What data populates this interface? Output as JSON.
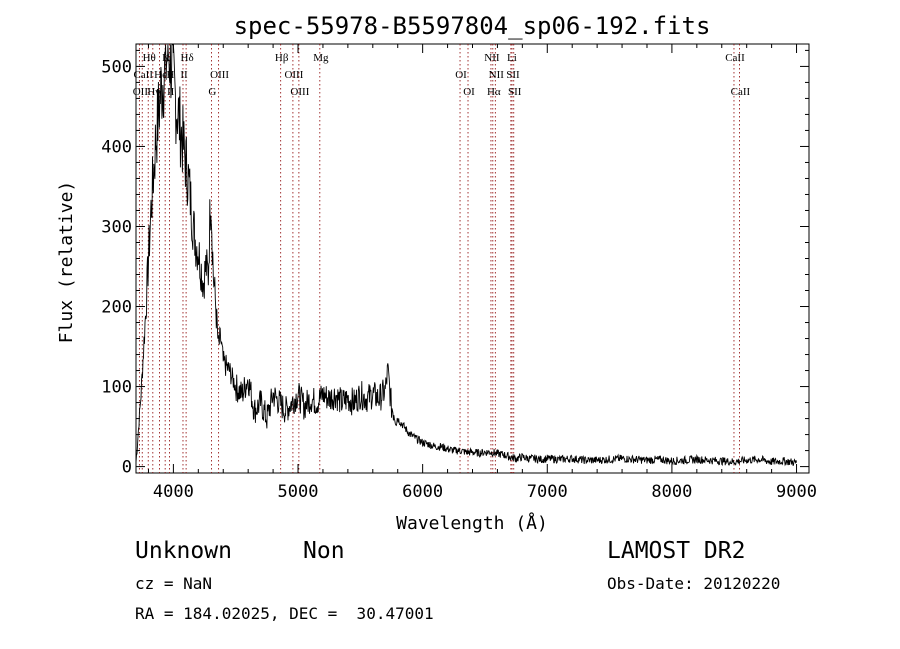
{
  "chart_data": {
    "type": "line",
    "title": "spec-55978-B5597804_sp06-192.fits",
    "xlabel": "Wavelength (Å)",
    "ylabel": "Flux (relative)",
    "xlim": [
      3700,
      9100
    ],
    "ylim": [
      -8,
      528
    ],
    "x_ticks": [
      4000,
      5000,
      6000,
      7000,
      8000,
      9000
    ],
    "y_ticks": [
      0,
      100,
      200,
      300,
      400,
      500
    ],
    "x_tick_labels": [
      "4000",
      "5000",
      "6000",
      "7000",
      "8000",
      "9000"
    ],
    "y_tick_labels": [
      "0",
      "100",
      "200",
      "300",
      "400",
      "500"
    ],
    "grid": false,
    "line_color": "#000000",
    "marker_color": "#8b0000",
    "series": [
      {
        "x": [
          3700,
          3740,
          3780,
          3820,
          3860,
          3900,
          3930,
          3960,
          3980,
          4000,
          4020,
          4040,
          4060,
          4080,
          4100,
          4120,
          4140,
          4160,
          4180,
          4200,
          4220,
          4240,
          4260,
          4280,
          4300,
          4320,
          4340,
          4360,
          4380,
          4400,
          4450,
          4500,
          4550,
          4600,
          4650,
          4700,
          4750,
          4800,
          4850,
          4900,
          4950,
          5000,
          5050,
          5100,
          5150,
          5200,
          5250,
          5300,
          5350,
          5400,
          5450,
          5500,
          5550,
          5600,
          5650,
          5700,
          5720,
          5750,
          5800,
          5850,
          5900,
          5950,
          6000,
          6050,
          6100,
          6150,
          6200,
          6250,
          6300,
          6350,
          6400,
          6450,
          6500,
          6550,
          6600,
          6650,
          6700,
          6750,
          6800,
          6850,
          6900,
          6950,
          7000,
          7100,
          7200,
          7300,
          7400,
          7500,
          7600,
          7700,
          7800,
          7900,
          8000,
          8100,
          8200,
          8300,
          8400,
          8500,
          8600,
          8700,
          8800,
          8900,
          9000
        ],
        "y": [
          5,
          90,
          200,
          320,
          410,
          470,
          495,
          520,
          505,
          480,
          455,
          440,
          420,
          400,
          380,
          360,
          330,
          300,
          280,
          270,
          250,
          230,
          250,
          240,
          350,
          240,
          200,
          150,
          160,
          130,
          120,
          100,
          90,
          110,
          70,
          80,
          60,
          90,
          80,
          70,
          80,
          90,
          75,
          85,
          80,
          90,
          85,
          90,
          80,
          85,
          80,
          90,
          85,
          90,
          85,
          95,
          120,
          75,
          60,
          50,
          40,
          35,
          30,
          28,
          25,
          25,
          22,
          20,
          20,
          18,
          18,
          17,
          18,
          18,
          16,
          15,
          12,
          10,
          12,
          10,
          10,
          9,
          10,
          9,
          10,
          8,
          8,
          9,
          10,
          9,
          8,
          9,
          7,
          8,
          9,
          8,
          7,
          6,
          8,
          9,
          6,
          7,
          5
        ]
      }
    ],
    "marker_labels": [
      {
        "name": "Hθ",
        "row": 1,
        "x": 3798
      },
      {
        "name": "K",
        "row": 1,
        "x": 3934
      },
      {
        "name": "Hδ",
        "row": 1,
        "x": 4102
      },
      {
        "name": "Hβ",
        "row": 1,
        "x": 4861
      },
      {
        "name": "Mg",
        "row": 1,
        "x": 5175
      },
      {
        "name": "NII",
        "row": 1,
        "x": 6548
      },
      {
        "name": "Li",
        "row": 1,
        "x": 6708
      },
      {
        "name": "CaII",
        "row": 1,
        "x": 8498
      },
      {
        "name": "CaII",
        "row": 2,
        "x": 3750
      },
      {
        "name": "He",
        "row": 2,
        "x": 3889
      },
      {
        "name": "H",
        "row": 2,
        "x": 3969
      },
      {
        "name": "II",
        "row": 2,
        "x": 4077
      },
      {
        "name": "OIII",
        "row": 2,
        "x": 4363
      },
      {
        "name": "OIII",
        "row": 2,
        "x": 4959
      },
      {
        "name": "OI",
        "row": 2,
        "x": 6300
      },
      {
        "name": "NII",
        "row": 2,
        "x": 6583
      },
      {
        "name": "SII",
        "row": 2,
        "x": 6717
      },
      {
        "name": "OII",
        "row": 3,
        "x": 3727
      },
      {
        "name": "Hγ",
        "row": 3,
        "x": 3835
      },
      {
        "name": "II",
        "row": 3,
        "x": 3970
      },
      {
        "name": "G",
        "row": 3,
        "x": 4305
      },
      {
        "name": "OIII",
        "row": 3,
        "x": 5007
      },
      {
        "name": "OI",
        "row": 3,
        "x": 6364
      },
      {
        "name": "Hα",
        "row": 3,
        "x": 6563
      },
      {
        "name": "SII",
        "row": 3,
        "x": 6731
      },
      {
        "name": "CaII",
        "row": 3,
        "x": 8542
      }
    ],
    "marker_lines": [
      3727,
      3750,
      3798,
      3835,
      3889,
      3934,
      3969,
      4077,
      4102,
      4305,
      4363,
      4861,
      4959,
      5007,
      5175,
      6300,
      6364,
      6548,
      6563,
      6583,
      6708,
      6717,
      6731,
      8498,
      8542
    ]
  },
  "info": {
    "object_class": "Unknown",
    "object_subclass": "Non",
    "cz": "cz = NaN",
    "ra_dec": "RA = 184.02025, DEC =  30.47001",
    "survey": "LAMOST DR2",
    "obs_date": "Obs-Date: 20120220"
  }
}
